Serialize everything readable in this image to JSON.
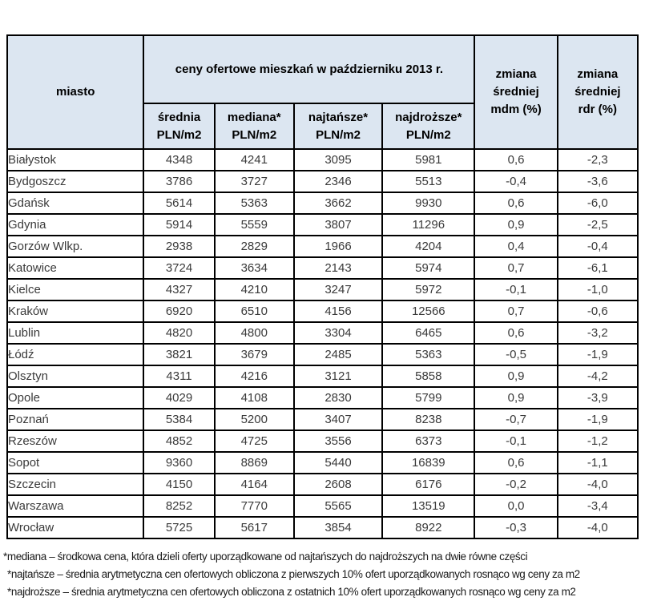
{
  "table": {
    "header": {
      "city_col": "miasto",
      "group_title": "ceny ofertowe mieszkań w październiku 2013 r.",
      "sub_columns": [
        "średnia\nPLN/m2",
        "mediana*\nPLN/m2",
        "najtańsze*\nPLN/m2",
        "najdroższe*\nPLN/m2"
      ],
      "change_mdm": "zmiana\nśredniej\nmdm (%)",
      "change_rdr": "zmiana\nśredniej\nrdr (%)"
    },
    "rows": [
      {
        "city": "Białystok",
        "values": [
          "4348",
          "4241",
          "3095",
          "5981",
          "0,6",
          "-2,3"
        ]
      },
      {
        "city": "Bydgoszcz",
        "values": [
          "3786",
          "3727",
          "2346",
          "5513",
          "-0,4",
          "-3,6"
        ]
      },
      {
        "city": "Gdańsk",
        "values": [
          "5614",
          "5363",
          "3662",
          "9930",
          "0,6",
          "-6,0"
        ]
      },
      {
        "city": "Gdynia",
        "values": [
          "5914",
          "5559",
          "3807",
          "11296",
          "0,9",
          "-2,5"
        ]
      },
      {
        "city": "Gorzów Wlkp.",
        "values": [
          "2938",
          "2829",
          "1966",
          "4204",
          "0,4",
          "-0,4"
        ]
      },
      {
        "city": "Katowice",
        "values": [
          "3724",
          "3634",
          "2143",
          "5974",
          "0,7",
          "-6,1"
        ]
      },
      {
        "city": "Kielce",
        "values": [
          "4327",
          "4210",
          "3247",
          "5972",
          "-0,1",
          "-1,0"
        ]
      },
      {
        "city": "Kraków",
        "values": [
          "6920",
          "6510",
          "4156",
          "12566",
          "0,7",
          "-0,6"
        ]
      },
      {
        "city": "Lublin",
        "values": [
          "4820",
          "4800",
          "3304",
          "6465",
          "0,6",
          "-3,2"
        ]
      },
      {
        "city": "Łódź",
        "values": [
          "3821",
          "3679",
          "2485",
          "5363",
          "-0,5",
          "-1,9"
        ]
      },
      {
        "city": "Olsztyn",
        "values": [
          "4311",
          "4216",
          "3121",
          "5858",
          "0,9",
          "-4,2"
        ]
      },
      {
        "city": "Opole",
        "values": [
          "4029",
          "4108",
          "2830",
          "5799",
          "0,9",
          "-3,9"
        ]
      },
      {
        "city": "Poznań",
        "values": [
          "5384",
          "5200",
          "3407",
          "8238",
          "-0,7",
          "-1,9"
        ]
      },
      {
        "city": "Rzeszów",
        "values": [
          "4852",
          "4725",
          "3556",
          "6373",
          "-0,1",
          "-1,2"
        ]
      },
      {
        "city": "Sopot",
        "values": [
          "9360",
          "8869",
          "5440",
          "16839",
          "0,6",
          "-1,1"
        ]
      },
      {
        "city": "Szczecin",
        "values": [
          "4150",
          "4164",
          "2608",
          "6176",
          "-0,2",
          "-4,0"
        ]
      },
      {
        "city": "Warszawa",
        "values": [
          "8252",
          "7770",
          "5565",
          "13519",
          "0,0",
          "-3,4"
        ]
      },
      {
        "city": "Wrocław",
        "values": [
          "5725",
          "5617",
          "3854",
          "8922",
          "-0,3",
          "-4,0"
        ]
      }
    ]
  },
  "footnotes": [
    "*mediana – środkowa cena, która dzieli oferty uporządkowane od najtańszych do najdroższych na dwie równe części",
    "*najtańsze – średnia arytmetyczna cen ofertowych obliczona z pierwszych 10% ofert uporządkowanych rosnąco wg ceny za m2",
    "*najdroższe – średnia arytmetyczna cen ofertowych obliczona z ostatnich 10% ofert uporządkowanych rosnąco wg ceny za m2"
  ],
  "colors": {
    "header_bg": "#dce6f1",
    "border": "#000000"
  }
}
